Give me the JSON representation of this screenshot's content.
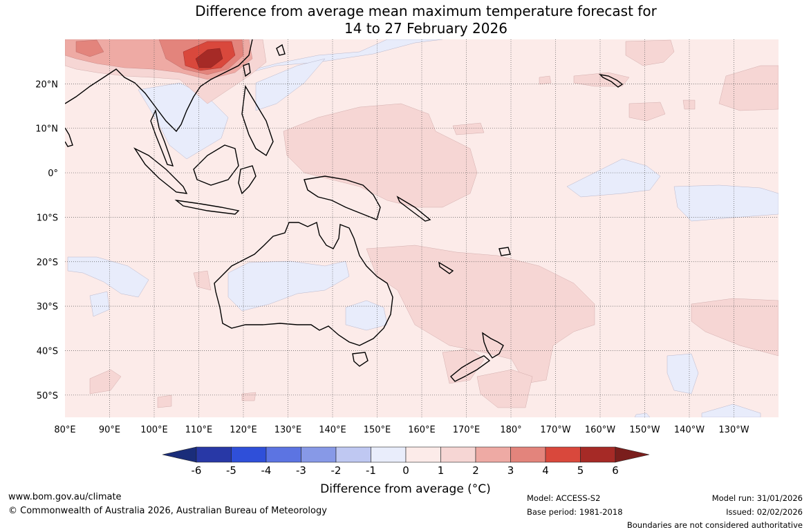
{
  "title": {
    "line1": "Difference from average mean maximum temperature forecast for",
    "line2": "14 to 27 February 2026"
  },
  "map": {
    "lon_labels": [
      "80°E",
      "90°E",
      "100°E",
      "110°E",
      "120°E",
      "130°E",
      "140°E",
      "150°E",
      "160°E",
      "170°E",
      "180°",
      "170°W",
      "160°W",
      "150°W",
      "140°W",
      "130°W"
    ],
    "lat_labels": [
      "20°N",
      "10°N",
      "0°",
      "10°S",
      "20°S",
      "30°S",
      "40°S",
      "50°S"
    ],
    "lat_values": [
      20,
      10,
      0,
      -10,
      -20,
      -30,
      -40,
      -50
    ],
    "lon_values": [
      80,
      90,
      100,
      110,
      120,
      130,
      140,
      150,
      160,
      170,
      180,
      190,
      200,
      210,
      220,
      230
    ],
    "lon_range": [
      80,
      240
    ],
    "lat_range": [
      -55,
      30
    ],
    "grid": true,
    "colors": {
      "background": "#fcebe9",
      "cool_minus1": "#e8ecfb",
      "warm_1": "#f6d6d4",
      "warm_2": "#eeaaa4",
      "warm_3": "#e3847c",
      "warm_4": "#d9483c",
      "warm_5": "#a62a26",
      "coast": "#000000"
    }
  },
  "colorbar": {
    "tick_labels": [
      "-6",
      "-5",
      "-4",
      "-3",
      "-2",
      "-1",
      "0",
      "1",
      "2",
      "3",
      "4",
      "5",
      "6"
    ],
    "colors": [
      "#1a2d7a",
      "#2838a6",
      "#2f4fd9",
      "#5c74e2",
      "#8799e7",
      "#bfc8f2",
      "#e9edfb",
      "#fcebe9",
      "#f6d6d4",
      "#eeaaa4",
      "#e3847c",
      "#d9483c",
      "#a62a26",
      "#7a1e1c"
    ],
    "title": "Difference from average (°C)"
  },
  "footer": {
    "website": "www.bom.gov.au/climate",
    "copyright": "© Commonwealth of Australia 2026, Australian Bureau of Meteorology",
    "model": "Model: ACCESS-S2",
    "base_period": "Base period: 1981-2018",
    "model_run": "Model run: 31/01/2026",
    "issued": "Issued: 02/02/2026",
    "disclaimer": "Boundaries are not considered authoritative"
  }
}
